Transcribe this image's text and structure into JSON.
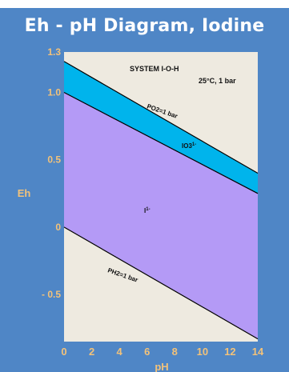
{
  "chart_data": {
    "type": "area",
    "title": "Eh - pH Diagram, Iodine",
    "xlabel": "pH",
    "ylabel": "Eh",
    "xlim": [
      0,
      14
    ],
    "ylim": [
      -0.85,
      1.3
    ],
    "x_ticks": [
      "0",
      "2",
      "4",
      "6",
      "8",
      "10",
      "12",
      "14"
    ],
    "y_ticks": [
      {
        "value": 1.3,
        "label": "1.3"
      },
      {
        "value": 1.0,
        "label": "1.0"
      },
      {
        "value": 0.5,
        "label": "0.5"
      },
      {
        "value": 0,
        "label": "0"
      },
      {
        "value": -0.5,
        "label": "- 0.5"
      }
    ],
    "grid": false,
    "series": [
      {
        "x": [
          0,
          14
        ],
        "y": [
          1.23,
          0.4
        ],
        "color": "#000000"
      },
      {
        "x": [
          0,
          14
        ],
        "y": [
          1.0,
          0.25
        ],
        "color": "#000000"
      },
      {
        "x": [
          0,
          14
        ],
        "y": [
          0.0,
          -0.83
        ],
        "color": "#000000"
      }
    ],
    "regions": [
      {
        "label": "IO3",
        "label_sup": "1-",
        "color": "#00b4ec"
      },
      {
        "label": "I",
        "label_sup": "1-",
        "color": "#b49af6"
      }
    ],
    "colors": {
      "background": "#eeeae0",
      "panel": "#4f86c6",
      "text": "#f2c27a"
    },
    "annotations": {
      "system": "SYSTEM I-O-H",
      "conditions": "25°C, 1 bar",
      "upper_line": "PO2=1 bar",
      "lower_line": "PH2=1 bar"
    }
  }
}
